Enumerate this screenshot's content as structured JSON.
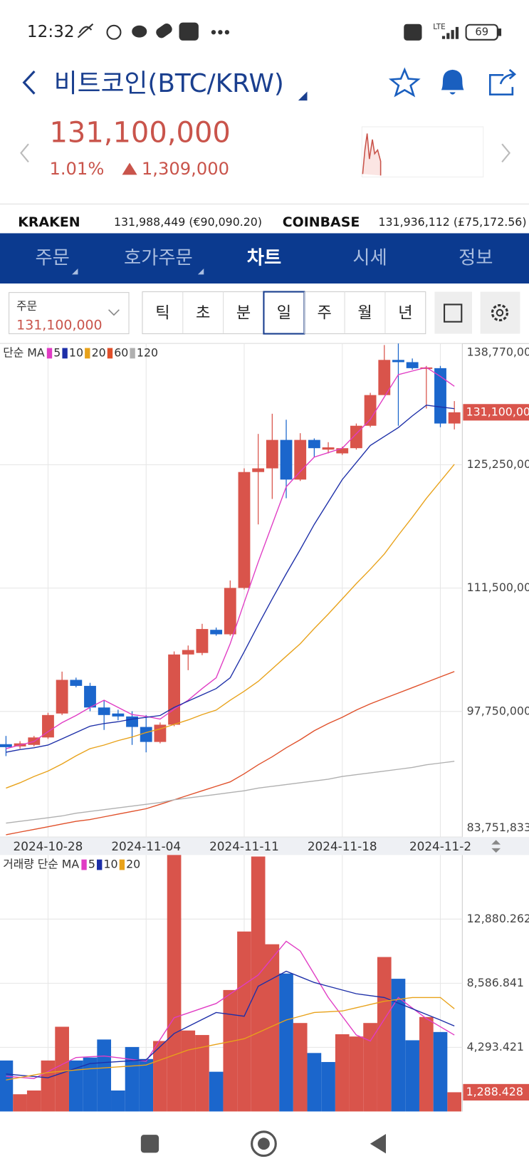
{
  "status_bar": {
    "time": "12:32",
    "network": "LTE",
    "battery": "69"
  },
  "header": {
    "title": "비트코인(BTC/KRW)",
    "price": "131,100,000",
    "change_percent": "1.01%",
    "change_amount": "1,309,000"
  },
  "exchanges": [
    {
      "name": "KRAKEN",
      "price": "131,988,449 (€90,090.20)"
    },
    {
      "name": "COINBASE",
      "price": "131,936,112 (£75,172.56)"
    }
  ],
  "tabs": [
    "주문",
    "호가주문",
    "차트",
    "시세",
    "정보"
  ],
  "order_box": {
    "label": "주문",
    "price": "131,100,000"
  },
  "periods": [
    "틱",
    "초",
    "분",
    "일",
    "주",
    "월",
    "년"
  ],
  "chart_data": [
    {
      "type": "candlestick",
      "legend_title": "단순 MA",
      "categories": [
        null,
        null,
        null,
        "2024-10-28",
        null,
        null,
        null,
        null,
        null,
        null,
        "2024-11-04",
        null,
        null,
        null,
        null,
        null,
        null,
        "2024-11-11",
        null,
        null,
        null,
        null,
        null,
        null,
        "2024-11-18",
        null,
        null,
        null,
        null,
        null,
        null,
        "2024-11-2",
        null
      ],
      "open": [
        94100000,
        93850000,
        94020000,
        94850000,
        97520000,
        101270000,
        100600000,
        98190000,
        97520000,
        97190000,
        96020000,
        94350000,
        96270000,
        104100000,
        104270000,
        106850000,
        106350000,
        111520000,
        124440000,
        124850000,
        128020000,
        123600000,
        128020000,
        126940000,
        126520000,
        127100000,
        129600000,
        133020000,
        136940000,
        136690000,
        135940000,
        136020000,
        129850000
      ],
      "high": [
        95020000,
        94440000,
        95020000,
        97600000,
        102190000,
        101520000,
        100940000,
        99020000,
        97940000,
        97770000,
        97350000,
        96520000,
        104440000,
        105100000,
        107520000,
        107100000,
        112350000,
        124850000,
        128690000,
        130940000,
        130270000,
        128770000,
        128190000,
        127770000,
        127270000,
        129850000,
        133270000,
        138600000,
        138770000,
        137100000,
        136270000,
        136270000,
        132350000
      ],
      "low": [
        92770000,
        93600000,
        93850000,
        94690000,
        97350000,
        100440000,
        97770000,
        95690000,
        96770000,
        94020000,
        93190000,
        94190000,
        96100000,
        102350000,
        104020000,
        106190000,
        106190000,
        111350000,
        118600000,
        121440000,
        121520000,
        123440000,
        126100000,
        126520000,
        126350000,
        126940000,
        129440000,
        133020000,
        129600000,
        135850000,
        131520000,
        129440000,
        129190000
      ],
      "close": [
        93770000,
        94190000,
        94850000,
        97350000,
        101270000,
        100600000,
        98190000,
        97350000,
        97190000,
        96020000,
        94350000,
        96270000,
        104100000,
        104600000,
        106940000,
        106350000,
        111520000,
        124440000,
        124850000,
        128020000,
        123600000,
        128020000,
        127100000,
        127190000,
        127100000,
        129600000,
        133020000,
        136940000,
        136690000,
        136020000,
        136100000,
        129850000,
        131100000
      ],
      "up_color": "#d9544b",
      "down_color": "#1b66cc",
      "moving_averages": [
        {
          "name": "5",
          "color": "#e03cc4",
          "values": [
            93600000,
            94000000,
            94400000,
            95500000,
            96500000,
            97300000,
            98200000,
            99000000,
            98200000,
            97400000,
            97200000,
            96900000,
            98000000,
            99000000,
            100300000,
            101500000,
            105300000,
            109900000,
            114400000,
            118600000,
            122800000,
            124500000,
            126100000,
            126600000,
            127100000,
            128700000,
            130300000,
            132800000,
            135300000,
            135700000,
            136100000,
            135100000,
            134000000
          ]
        },
        {
          "name": "10",
          "color": "#1d2fa8",
          "values": [
            93200000,
            93500000,
            93700000,
            94000000,
            94700000,
            95400000,
            96100000,
            96400000,
            96600000,
            96900000,
            97100000,
            97300000,
            98200000,
            98900000,
            99600000,
            100300000,
            101500000,
            104400000,
            107400000,
            110300000,
            113100000,
            115800000,
            118600000,
            121100000,
            123600000,
            125500000,
            127400000,
            128400000,
            129400000,
            130700000,
            131900000,
            131700000,
            131500000
          ]
        },
        {
          "name": "20",
          "color": "#e8a21a",
          "values": [
            89200000,
            89800000,
            90500000,
            91100000,
            91900000,
            92800000,
            93600000,
            94000000,
            94500000,
            94900000,
            95400000,
            95800000,
            96300000,
            96800000,
            97400000,
            97900000,
            99000000,
            100000000,
            101100000,
            102500000,
            103900000,
            105300000,
            107000000,
            108600000,
            110300000,
            112000000,
            113600000,
            115300000,
            117400000,
            119400000,
            121500000,
            123400000,
            125300000
          ]
        },
        {
          "name": "60",
          "color": "#e0502a",
          "values": [
            84000000,
            84300000,
            84600000,
            84900000,
            85200000,
            85500000,
            85700000,
            86000000,
            86300000,
            86600000,
            86900000,
            87400000,
            87900000,
            88400000,
            88900000,
            89400000,
            89900000,
            90800000,
            91800000,
            92700000,
            93700000,
            94600000,
            95600000,
            96400000,
            97100000,
            97900000,
            98600000,
            99200000,
            99800000,
            100400000,
            101000000,
            101600000,
            102200000
          ]
        },
        {
          "name": "120",
          "color": "#b0b0b0",
          "values": [
            85300000,
            85500000,
            85700000,
            85900000,
            86100000,
            86400000,
            86600000,
            86800000,
            87000000,
            87200000,
            87400000,
            87600000,
            87900000,
            88100000,
            88300000,
            88500000,
            88700000,
            88900000,
            89200000,
            89400000,
            89600000,
            89800000,
            90000000,
            90200000,
            90500000,
            90700000,
            90900000,
            91100000,
            91300000,
            91500000,
            91800000,
            92000000,
            92200000
          ]
        }
      ],
      "ylim": [
        83751833,
        138770000
      ],
      "yticks": [
        {
          "value": 83751833,
          "label": "83,751,833"
        },
        {
          "value": 97750000,
          "label": "97,750,000"
        },
        {
          "value": 111500000,
          "label": "111,500,000"
        },
        {
          "value": 125250000,
          "label": "125,250,000"
        },
        {
          "value": 138770000,
          "label": "138,770,000"
        }
      ],
      "current_price": {
        "value": 131100000,
        "label": "131,100,000"
      },
      "grid": true
    },
    {
      "type": "bar",
      "legend_title": "거래량 단순 MA",
      "values": [
        3414,
        1155,
        1406,
        3414,
        5673,
        3414,
        3614,
        4819,
        1406,
        4317,
        3514,
        4719,
        17170,
        5422,
        5120,
        2661,
        8132,
        12048,
        17068,
        11195,
        9237,
        5924,
        3916,
        3313,
        5171,
        5020,
        5924,
        10341,
        8885,
        4769,
        6325,
        5321,
        1288.428
      ],
      "colors": [
        "#1b66cc",
        "#d9544b",
        "#d9544b",
        "#d9544b",
        "#d9544b",
        "#1b66cc",
        "#1b66cc",
        "#1b66cc",
        "#1b66cc",
        "#1b66cc",
        "#1b66cc",
        "#d9544b",
        "#d9544b",
        "#d9544b",
        "#d9544b",
        "#1b66cc",
        "#d9544b",
        "#d9544b",
        "#d9544b",
        "#d9544b",
        "#1b66cc",
        "#d9544b",
        "#1b66cc",
        "#1b66cc",
        "#d9544b",
        "#d9544b",
        "#d9544b",
        "#d9544b",
        "#1b66cc",
        "#1b66cc",
        "#d9544b",
        "#1b66cc",
        "#d9544b"
      ],
      "moving_averages": [
        {
          "name": "5",
          "color": "#e03cc4",
          "values": [
            2359,
            2284,
            2209,
            2677,
            3146,
            3614,
            3665,
            3715,
            3598,
            3480,
            3363,
            4819,
            6275,
            6593,
            6911,
            7229,
            7865,
            8500,
            9136,
            10266,
            11395,
            10743,
            9187,
            7630,
            6375,
            5120,
            4719,
            6175,
            7630,
            6928,
            6225,
            5673,
            5120
          ]
        },
        {
          "name": "10",
          "color": "#1d2fa8",
          "values": [
            2510,
            2426,
            2343,
            2259,
            2577,
            2895,
            3213,
            3276,
            3339,
            3401,
            3464,
            4343,
            5221,
            5689,
            6158,
            6626,
            6501,
            6375,
            8383,
            8885,
            9387,
            9011,
            8634,
            8383,
            8132,
            7881,
            7756,
            7630,
            7254,
            6877,
            6501,
            6124,
            5723
          ]
        },
        {
          "name": "20",
          "color": "#e8a21a",
          "values": [
            2108,
            2275,
            2443,
            2610,
            2694,
            2777,
            2861,
            2924,
            2987,
            3049,
            3112,
            3447,
            3781,
            4116,
            4304,
            4492,
            4681,
            4869,
            5287,
            5706,
            6124,
            6375,
            6626,
            6676,
            6727,
            6944,
            7162,
            7379,
            7504,
            7630,
            7630,
            7630,
            6877
          ]
        }
      ],
      "ylim": [
        0,
        17170
      ],
      "yticks": [
        {
          "value": 4293.421,
          "label": "4,293.421"
        },
        {
          "value": 8586.841,
          "label": "8,586.841"
        },
        {
          "value": 12880.262,
          "label": "12,880.262"
        }
      ],
      "current_volume": {
        "value": 1288.428,
        "label": "1,288.428"
      }
    }
  ]
}
